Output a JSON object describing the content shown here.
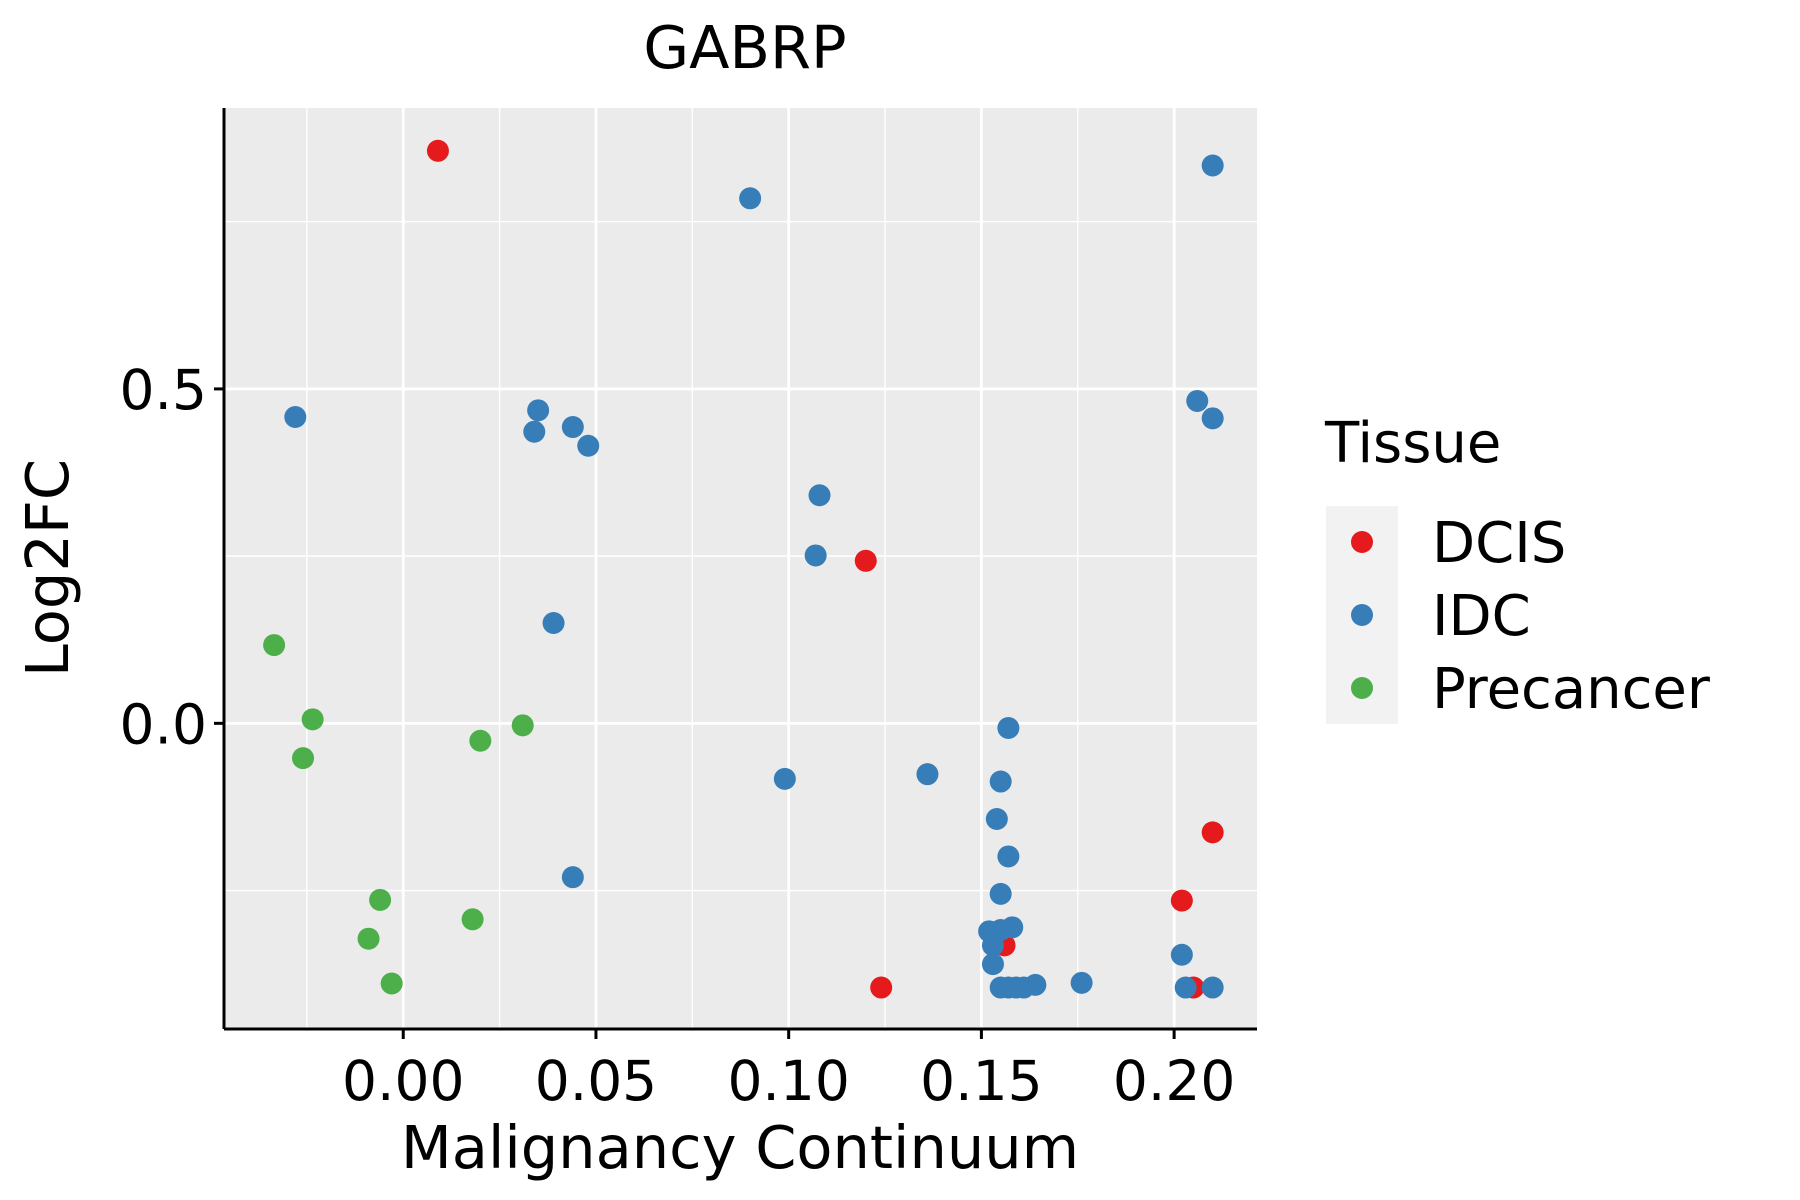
{
  "chart_data": {
    "type": "scatter",
    "title": "GABRP",
    "xlabel": "Malignancy Continuum",
    "ylabel": "Log2FC",
    "xlim": [
      -0.0465,
      0.2215
    ],
    "ylim": [
      -0.457,
      0.92
    ],
    "x_ticks": [
      0.0,
      0.05,
      0.1,
      0.15,
      0.2
    ],
    "x_tick_labels": [
      "0.00",
      "0.05",
      "0.10",
      "0.15",
      "0.20"
    ],
    "x_minor_ticks": [
      -0.025,
      0.025,
      0.075,
      0.125,
      0.175
    ],
    "y_ticks": [
      0.0,
      0.5
    ],
    "y_tick_labels": [
      "0.0",
      "0.5"
    ],
    "y_minor_ticks": [
      -0.25,
      0.25,
      0.75
    ],
    "grid": true,
    "legend": {
      "title": "Tissue",
      "position": "right",
      "entries": [
        {
          "label": "DCIS",
          "color": "#E41A1C"
        },
        {
          "label": "IDC",
          "color": "#377EB8"
        },
        {
          "label": "Precancer",
          "color": "#4DAF4A"
        }
      ]
    },
    "colors": {
      "panel_background": "#EBEBEB",
      "gridline": "#FFFFFF",
      "axis_line": "#000000"
    },
    "series": [
      {
        "name": "DCIS",
        "color": "#E41A1C",
        "points": [
          {
            "x": 0.009,
            "y": 0.856
          },
          {
            "x": 0.12,
            "y": 0.243
          },
          {
            "x": 0.124,
            "y": -0.395
          },
          {
            "x": 0.156,
            "y": -0.332
          },
          {
            "x": 0.202,
            "y": -0.265
          },
          {
            "x": 0.205,
            "y": -0.395
          },
          {
            "x": 0.21,
            "y": -0.163
          }
        ]
      },
      {
        "name": "IDC",
        "color": "#377EB8",
        "points": [
          {
            "x": -0.028,
            "y": 0.458
          },
          {
            "x": 0.034,
            "y": 0.436
          },
          {
            "x": 0.035,
            "y": 0.468
          },
          {
            "x": 0.044,
            "y": 0.443
          },
          {
            "x": 0.048,
            "y": 0.415
          },
          {
            "x": 0.039,
            "y": 0.15
          },
          {
            "x": 0.044,
            "y": -0.23
          },
          {
            "x": 0.09,
            "y": 0.785
          },
          {
            "x": 0.099,
            "y": -0.083
          },
          {
            "x": 0.107,
            "y": 0.251
          },
          {
            "x": 0.108,
            "y": 0.341
          },
          {
            "x": 0.136,
            "y": -0.076
          },
          {
            "x": 0.157,
            "y": -0.007
          },
          {
            "x": 0.155,
            "y": -0.087
          },
          {
            "x": 0.154,
            "y": -0.143
          },
          {
            "x": 0.157,
            "y": -0.199
          },
          {
            "x": 0.155,
            "y": -0.255
          },
          {
            "x": 0.152,
            "y": -0.311
          },
          {
            "x": 0.155,
            "y": -0.309
          },
          {
            "x": 0.158,
            "y": -0.305
          },
          {
            "x": 0.153,
            "y": -0.332
          },
          {
            "x": 0.153,
            "y": -0.36
          },
          {
            "x": 0.155,
            "y": -0.395
          },
          {
            "x": 0.157,
            "y": -0.395
          },
          {
            "x": 0.159,
            "y": -0.395
          },
          {
            "x": 0.161,
            "y": -0.395
          },
          {
            "x": 0.164,
            "y": -0.391
          },
          {
            "x": 0.176,
            "y": -0.388
          },
          {
            "x": 0.202,
            "y": -0.346
          },
          {
            "x": 0.203,
            "y": -0.395
          },
          {
            "x": 0.21,
            "y": -0.395
          },
          {
            "x": 0.206,
            "y": 0.482
          },
          {
            "x": 0.21,
            "y": 0.456
          },
          {
            "x": 0.21,
            "y": 0.834
          }
        ]
      },
      {
        "name": "Precancer",
        "color": "#4DAF4A",
        "points": [
          {
            "x": -0.0335,
            "y": 0.117
          },
          {
            "x": -0.0235,
            "y": 0.006
          },
          {
            "x": -0.026,
            "y": -0.052
          },
          {
            "x": 0.02,
            "y": -0.026
          },
          {
            "x": 0.031,
            "y": -0.003
          },
          {
            "x": -0.006,
            "y": -0.264
          },
          {
            "x": 0.018,
            "y": -0.293
          },
          {
            "x": -0.009,
            "y": -0.322
          },
          {
            "x": -0.003,
            "y": -0.389
          }
        ]
      }
    ]
  }
}
